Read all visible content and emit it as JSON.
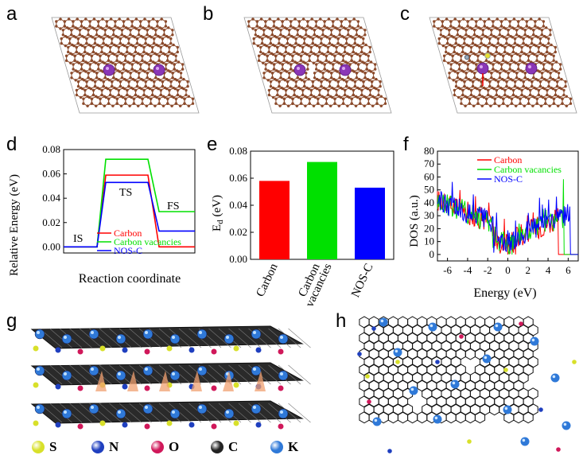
{
  "panel_letters": {
    "a": "a",
    "b": "b",
    "c": "c",
    "d": "d",
    "e": "e",
    "f": "f",
    "g": "g",
    "h": "h"
  },
  "colors": {
    "carbon": "#8b4a2b",
    "k": "#8a36b6",
    "nos_carbon": "#ff0000",
    "nos_vac": "#00e000",
    "nos_c": "#0000ff",
    "s": "#d8e02a",
    "n": "#1f3fbf",
    "o": "#d0185a",
    "c_ball": "#222222",
    "k_ball": "#2f79d8",
    "sheet": "#333333"
  },
  "chart_data": [
    {
      "id": "d",
      "type": "line",
      "title": "",
      "xlabel": "Reaction coordinate",
      "ylabel": "Relative Energy (eV)",
      "ylim": [
        -0.005,
        0.08
      ],
      "yticks": [
        "0.00",
        "0.02",
        "0.04",
        "0.06",
        "0.08"
      ],
      "state_labels": [
        "IS",
        "TS",
        "FS"
      ],
      "series": [
        {
          "name": "Carbon",
          "color": "#ff0000",
          "values": [
            0.0,
            0.059,
            0.0
          ]
        },
        {
          "name": "Carbon vacancies",
          "color": "#00e000",
          "values": [
            0.0,
            0.072,
            0.029
          ]
        },
        {
          "name": "NOS-C",
          "color": "#0000ff",
          "values": [
            0.0,
            0.053,
            0.013
          ]
        }
      ]
    },
    {
      "id": "e",
      "type": "bar",
      "title": "",
      "ylabel": "E_d (eV)",
      "ylim": [
        0.0,
        0.08
      ],
      "yticks": [
        "0.00",
        "0.02",
        "0.04",
        "0.06",
        "0.08"
      ],
      "categories": [
        [
          "Carbon"
        ],
        [
          "Carbon",
          "vacancies"
        ],
        [
          "NOS-C"
        ]
      ],
      "values": [
        0.058,
        0.072,
        0.053
      ],
      "bar_colors": [
        "#ff0000",
        "#00e000",
        "#0000ff"
      ]
    },
    {
      "id": "f",
      "type": "line",
      "title": "",
      "xlabel": "Energy (eV)",
      "ylabel": "DOS (a.u.)",
      "xlim": [
        -7,
        7
      ],
      "ylim": [
        -5,
        80
      ],
      "xticks": [
        "-6",
        "-4",
        "-2",
        "0",
        "2",
        "4",
        "6"
      ],
      "yticks": [
        "0",
        "10",
        "20",
        "30",
        "40",
        "50",
        "60",
        "70",
        "80"
      ],
      "series": [
        {
          "name": "Carbon",
          "color": "#ff0000",
          "cutoff": 5.0
        },
        {
          "name": "Carbon vacancies",
          "color": "#00e000",
          "cutoff": 5.6
        },
        {
          "name": "NOS-C",
          "color": "#0000ff",
          "cutoff": 6.2
        }
      ]
    }
  ],
  "legend_g": [
    {
      "label": "S",
      "color": "#d8e02a"
    },
    {
      "label": "N",
      "color": "#1f3fbf"
    },
    {
      "label": "O",
      "color": "#d0185a"
    },
    {
      "label": "C",
      "color": "#222222"
    },
    {
      "label": "K",
      "color": "#2f79d8"
    }
  ]
}
